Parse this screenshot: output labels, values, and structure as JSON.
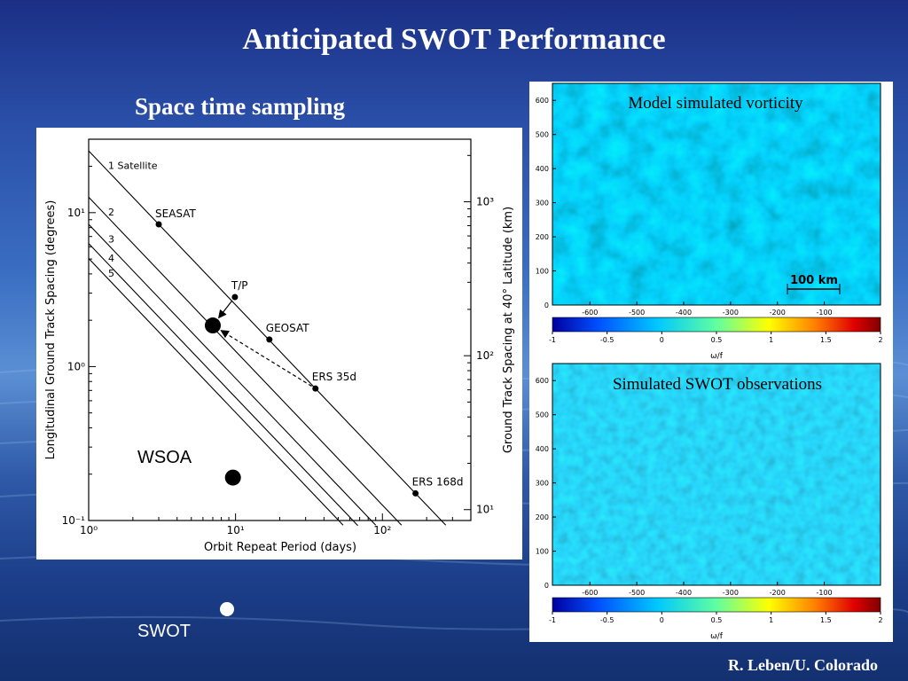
{
  "slide": {
    "title": "Anticipated SWOT Performance",
    "subtitle": "Space time sampling",
    "credit": "R. Leben/U. Colorado",
    "wsoa_label": "WSOA",
    "swot_label": "SWOT"
  },
  "chart_data": [
    {
      "type": "line",
      "xlabel": "Orbit Repeat Period (days)",
      "ylabel": "Longitudinal Ground Track Spacing (degrees)",
      "y2label": "Ground Track Spacing at 40° Latitude (km)",
      "xscale": "log",
      "yscale": "log",
      "xlim": [
        1,
        400
      ],
      "ylim": [
        0.1,
        30
      ],
      "x_ticks": [
        "10⁰",
        "10¹",
        "10²"
      ],
      "y_ticks": [
        "10⁻¹",
        "10⁰",
        "10¹"
      ],
      "y2_ticks": [
        "10¹",
        "10²",
        "10³"
      ],
      "series": [
        {
          "name": "1 Satellite",
          "x": [
            1,
            270
          ],
          "y": [
            25.2,
            0.0933
          ]
        },
        {
          "name": "2",
          "x": [
            1,
            135
          ],
          "y": [
            12.6,
            0.0933
          ]
        },
        {
          "name": "3",
          "x": [
            1,
            90
          ],
          "y": [
            8.4,
            0.0933
          ]
        },
        {
          "name": "4",
          "x": [
            1,
            68
          ],
          "y": [
            6.3,
            0.0927
          ]
        },
        {
          "name": "5",
          "x": [
            1,
            54
          ],
          "y": [
            5.04,
            0.0933
          ]
        }
      ],
      "points": [
        {
          "label": "SEASAT",
          "x": 3,
          "y": 8.4
        },
        {
          "label": "T/P",
          "x": 9.9,
          "y": 2.83
        },
        {
          "label": "GEOSAT",
          "x": 17,
          "y": 1.5
        },
        {
          "label": "ERS 35d",
          "x": 35,
          "y": 0.72
        },
        {
          "label": "ERS 168d",
          "x": 168,
          "y": 0.15
        }
      ],
      "highlight_points": [
        {
          "x": 7,
          "y": 1.85
        },
        {
          "x": 9.6,
          "y": 0.19
        }
      ],
      "arrows": [
        {
          "from": "T/P",
          "to_x": 7,
          "to_y": 1.85,
          "style": "solid"
        },
        {
          "from": "ERS 35d",
          "to_x": 7,
          "to_y": 1.85,
          "style": "dashed"
        }
      ]
    },
    {
      "type": "heatmap",
      "title": "Model simulated vorticity",
      "scale_label": "100 km",
      "y_ticks": [
        0,
        100,
        200,
        300,
        400,
        500,
        600
      ],
      "x_ticks": [
        -600,
        -500,
        -400,
        -300,
        -200,
        -100
      ],
      "colorbar_ticks": [
        -1,
        -0.5,
        0,
        0.5,
        1,
        1.5,
        2
      ],
      "colorbar_label": "ω/f",
      "colormap": [
        "#0000a0",
        "#0050ff",
        "#00c8ff",
        "#60ffa0",
        "#ffff00",
        "#ff8000",
        "#e00000",
        "#800000"
      ]
    },
    {
      "type": "heatmap",
      "title": "Simulated SWOT observations",
      "y_ticks": [
        0,
        100,
        200,
        300,
        400,
        500,
        600
      ],
      "x_ticks": [
        -600,
        -500,
        -400,
        -300,
        -200,
        -100
      ],
      "colorbar_ticks": [
        -1,
        -0.5,
        0,
        0.5,
        1,
        1.5,
        2
      ],
      "colorbar_label": "ω/f",
      "colormap": [
        "#0000a0",
        "#0050ff",
        "#00c8ff",
        "#60ffa0",
        "#ffff00",
        "#ff8000",
        "#e00000",
        "#800000"
      ]
    }
  ]
}
